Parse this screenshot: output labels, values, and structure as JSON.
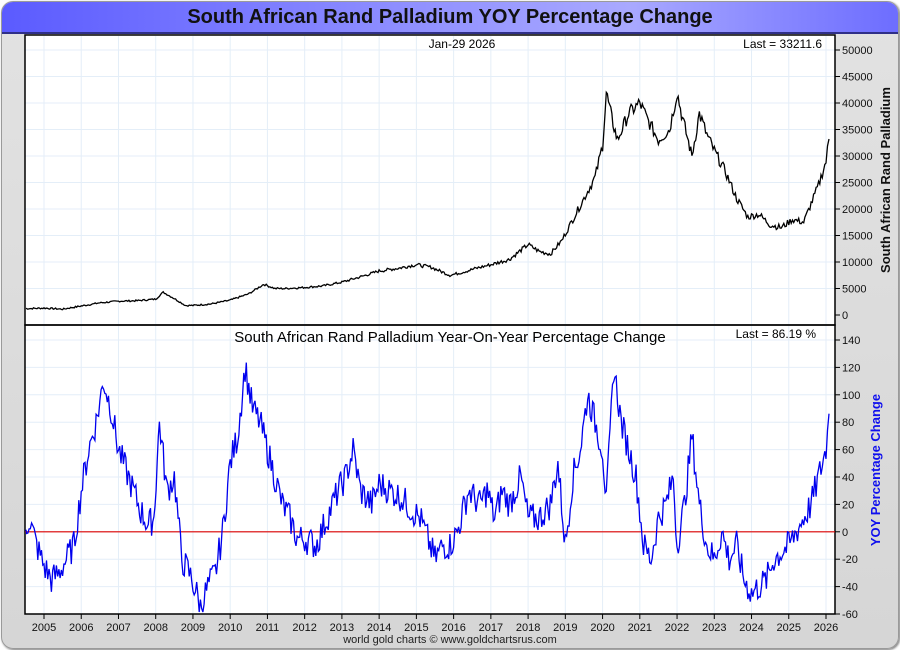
{
  "title": "South African Rand Palladium YOY Percentage Change",
  "footer": "world gold charts © www.goldchartsrus.com",
  "chart_data": [
    {
      "type": "line",
      "title": "",
      "date_label": "Jan-29  2026",
      "last_label": "Last = 33211.6",
      "ylabel": "South African Rand Palladium",
      "ylim": [
        0,
        50000
      ],
      "yticks": [
        "0",
        "5000",
        "10000",
        "15000",
        "20000",
        "25000",
        "30000",
        "35000",
        "40000",
        "45000",
        "50000"
      ],
      "xlim": [
        2004.5,
        2026.1
      ],
      "color": "#000000",
      "series": [
        {
          "name": "South African Rand Palladium",
          "x": [
            2004.5,
            2005.0,
            2005.5,
            2006.0,
            2006.5,
            2007.0,
            2007.5,
            2008.0,
            2008.2,
            2008.5,
            2008.8,
            2009.0,
            2009.5,
            2010.0,
            2010.5,
            2010.9,
            2011.2,
            2011.5,
            2012.0,
            2012.5,
            2013.0,
            2013.5,
            2014.0,
            2014.5,
            2015.0,
            2015.4,
            2015.9,
            2016.2,
            2016.6,
            2017.0,
            2017.5,
            2018.0,
            2018.3,
            2018.6,
            2018.9,
            2019.2,
            2019.5,
            2019.8,
            2020.0,
            2020.1,
            2020.25,
            2020.4,
            2020.7,
            2021.0,
            2021.2,
            2021.5,
            2021.8,
            2022.0,
            2022.15,
            2022.4,
            2022.6,
            2022.8,
            2023.0,
            2023.3,
            2023.6,
            2023.9,
            2024.2,
            2024.5,
            2024.8,
            2025.1,
            2025.4,
            2025.6,
            2025.8,
            2026.0,
            2026.08
          ],
          "y": [
            1200,
            1300,
            1100,
            1700,
            2300,
            2600,
            2700,
            3000,
            4300,
            3100,
            1800,
            1800,
            2100,
            2800,
            4000,
            5800,
            5000,
            5000,
            5200,
            5500,
            6200,
            7200,
            8300,
            8800,
            9500,
            9000,
            7500,
            8000,
            8800,
            9500,
            10500,
            13300,
            12000,
            11500,
            14000,
            18000,
            22000,
            26000,
            32000,
            42000,
            37000,
            33000,
            38000,
            40000,
            37000,
            33000,
            35000,
            42000,
            37000,
            30000,
            38000,
            34000,
            31000,
            27000,
            22000,
            18500,
            19000,
            17000,
            16500,
            18000,
            17500,
            21000,
            24500,
            29000,
            33211.6
          ]
        }
      ]
    },
    {
      "type": "line",
      "title": "South African Rand Palladium Year-On-Year Percentage Change",
      "last_label": "Last = 86.19 %",
      "ylabel": "YOY Percentage Change",
      "ylim": [
        -60,
        140
      ],
      "yticks": [
        "-60",
        "-40",
        "-20",
        "0",
        "20",
        "40",
        "60",
        "80",
        "100",
        "120",
        "140"
      ],
      "zero_line_color": "#dd0000",
      "color": "#0000ee",
      "xlim": [
        2004.5,
        2026.1
      ],
      "xticks": [
        "2005",
        "2006",
        "2007",
        "2008",
        "2009",
        "2010",
        "2011",
        "2012",
        "2013",
        "2014",
        "2015",
        "2016",
        "2017",
        "2018",
        "2019",
        "2020",
        "2021",
        "2022",
        "2023",
        "2024",
        "2025",
        "2026"
      ],
      "series": [
        {
          "name": "YOY Percentage Change",
          "x": [
            2004.5,
            2004.6,
            2004.8,
            2005.0,
            2005.2,
            2005.4,
            2005.6,
            2005.8,
            2006.0,
            2006.2,
            2006.4,
            2006.6,
            2006.8,
            2007.0,
            2007.2,
            2007.4,
            2007.6,
            2007.8,
            2007.95,
            2008.1,
            2008.3,
            2008.5,
            2008.7,
            2008.9,
            2009.1,
            2009.2,
            2009.4,
            2009.6,
            2009.8,
            2010.0,
            2010.2,
            2010.4,
            2010.6,
            2010.8,
            2011.0,
            2011.2,
            2011.4,
            2011.6,
            2011.8,
            2012.0,
            2012.3,
            2012.6,
            2012.9,
            2013.1,
            2013.3,
            2013.5,
            2013.8,
            2014.0,
            2014.3,
            2014.6,
            2014.9,
            2015.1,
            2015.3,
            2015.5,
            2015.7,
            2015.9,
            2016.1,
            2016.4,
            2016.7,
            2016.9,
            2017.1,
            2017.3,
            2017.5,
            2017.8,
            2018.0,
            2018.3,
            2018.6,
            2018.8,
            2019.0,
            2019.2,
            2019.4,
            2019.6,
            2019.8,
            2020.0,
            2020.1,
            2020.3,
            2020.5,
            2020.7,
            2020.9,
            2021.1,
            2021.3,
            2021.5,
            2021.7,
            2021.9,
            2022.0,
            2022.2,
            2022.4,
            2022.6,
            2022.8,
            2023.0,
            2023.2,
            2023.4,
            2023.6,
            2023.8,
            2024.0,
            2024.2,
            2024.4,
            2024.6,
            2024.8,
            2025.0,
            2025.2,
            2025.4,
            2025.6,
            2025.8,
            2026.0,
            2026.08
          ],
          "y": [
            0,
            10,
            -10,
            -25,
            -35,
            -30,
            -20,
            -10,
            30,
            60,
            80,
            110,
            90,
            60,
            45,
            30,
            15,
            5,
            10,
            80,
            30,
            40,
            -20,
            -30,
            -45,
            -55,
            -40,
            -30,
            0,
            50,
            70,
            120,
            90,
            80,
            60,
            40,
            20,
            10,
            -5,
            -5,
            -10,
            10,
            30,
            40,
            60,
            30,
            20,
            35,
            30,
            25,
            15,
            10,
            -5,
            -20,
            -10,
            -10,
            0,
            30,
            20,
            30,
            10,
            30,
            20,
            40,
            10,
            10,
            20,
            50,
            -10,
            40,
            60,
            100,
            80,
            60,
            20,
            120,
            80,
            60,
            40,
            -10,
            -20,
            10,
            20,
            40,
            -10,
            20,
            70,
            20,
            -10,
            -20,
            0,
            -20,
            -10,
            -35,
            -45,
            -40,
            -35,
            -20,
            -15,
            -10,
            0,
            10,
            20,
            40,
            60,
            86.19
          ]
        }
      ]
    }
  ]
}
